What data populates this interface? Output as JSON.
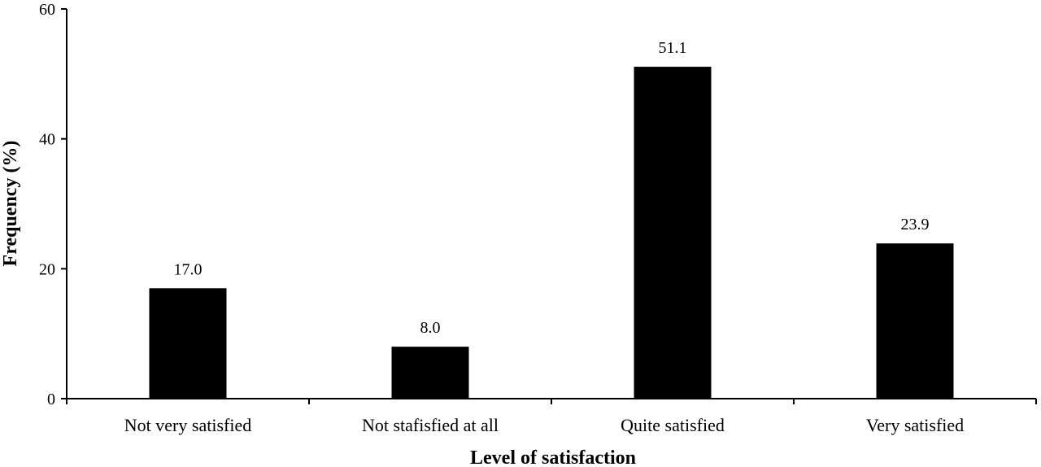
{
  "chart_data": {
    "type": "bar",
    "categories": [
      "Not very satisfied",
      "Not stafisfied at all",
      "Quite satisfied",
      "Very satisfied"
    ],
    "values": [
      17.0,
      8.0,
      51.1,
      23.9
    ],
    "data_labels": [
      "17.0",
      "8.0",
      "51.1",
      "23.9"
    ],
    "title": "",
    "xlabel": "Level of satisfaction",
    "ylabel": "Frequency (%)",
    "ylim": [
      0,
      60
    ],
    "yticks": [
      0,
      20,
      40,
      60
    ],
    "ytick_labels": [
      "0",
      "20",
      "40",
      "60"
    ],
    "grid": false,
    "legend": "none",
    "bar_color": "#000000"
  }
}
